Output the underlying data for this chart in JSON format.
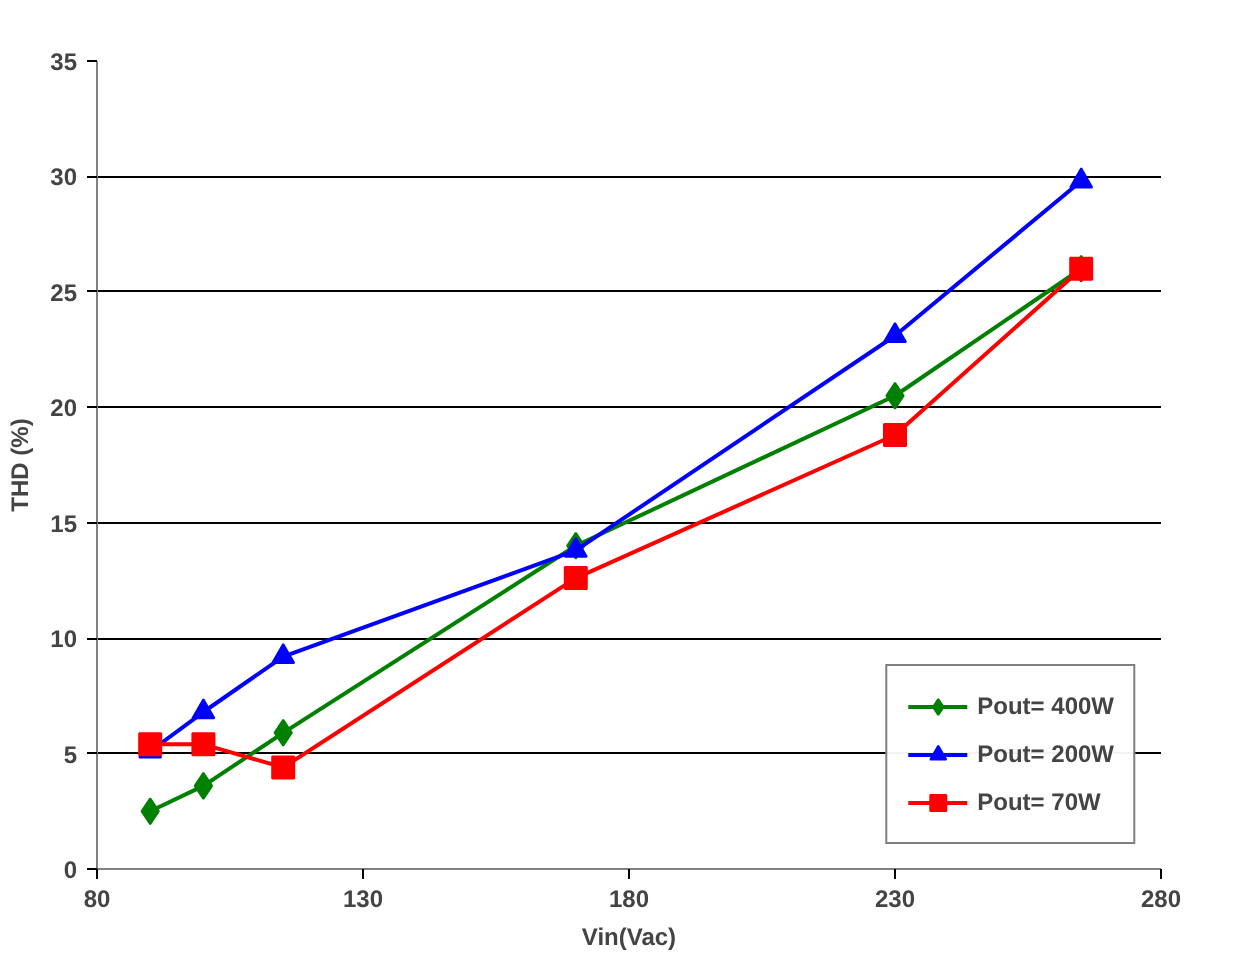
{
  "chart_data": {
    "type": "line",
    "xlabel": "Vin(Vac)",
    "ylabel": "THD (%)",
    "x": [
      90,
      100,
      115,
      170,
      230,
      265
    ],
    "xlim": [
      80,
      280
    ],
    "xticks": [
      80,
      130,
      180,
      230,
      280
    ],
    "ylim": [
      0,
      35
    ],
    "yticks": [
      0,
      5,
      10,
      15,
      20,
      25,
      30,
      35
    ],
    "grid": "y",
    "legend": "bottom right",
    "line_style": "solid",
    "series": [
      {
        "name": "Pout= 400W",
        "color": "#008000",
        "marker": "diamond",
        "values": [
          2.5,
          3.6,
          5.9,
          14.0,
          20.5,
          26.0
        ]
      },
      {
        "name": "Pout= 200W",
        "color": "#0000ff",
        "marker": "triangle",
        "values": [
          5.1,
          6.8,
          9.2,
          13.8,
          23.1,
          29.8
        ]
      },
      {
        "name": "Pout= 70W",
        "color": "#ff0000",
        "marker": "square",
        "values": [
          5.4,
          5.4,
          4.4,
          12.6,
          18.8,
          26.0
        ]
      }
    ]
  }
}
